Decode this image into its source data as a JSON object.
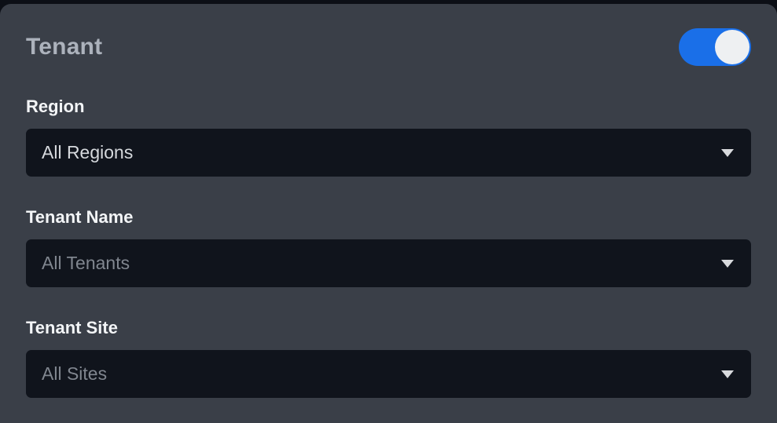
{
  "panel": {
    "title": "Tenant",
    "toggle": {
      "name": "tenant-filter-toggle",
      "state": "on",
      "accent_color": "#1a6fe8",
      "knob_color": "#eef0f2"
    }
  },
  "fields": [
    {
      "label": "Region",
      "value": "All Regions",
      "muted": false
    },
    {
      "label": "Tenant Name",
      "value": "All Tenants",
      "muted": true
    },
    {
      "label": "Tenant Site",
      "value": "All Sites",
      "muted": true
    }
  ],
  "icons": {
    "dropdown_caret": "chevron-down"
  },
  "colors": {
    "panel_background": "#3a3f48",
    "page_background": "#0c0f16",
    "select_background": "#10141c",
    "title_text": "#acb2bc",
    "label_text": "#f3f5f7",
    "select_text": "#d6d9dd",
    "select_text_muted": "#80868f",
    "accent": "#1a6fe8"
  }
}
